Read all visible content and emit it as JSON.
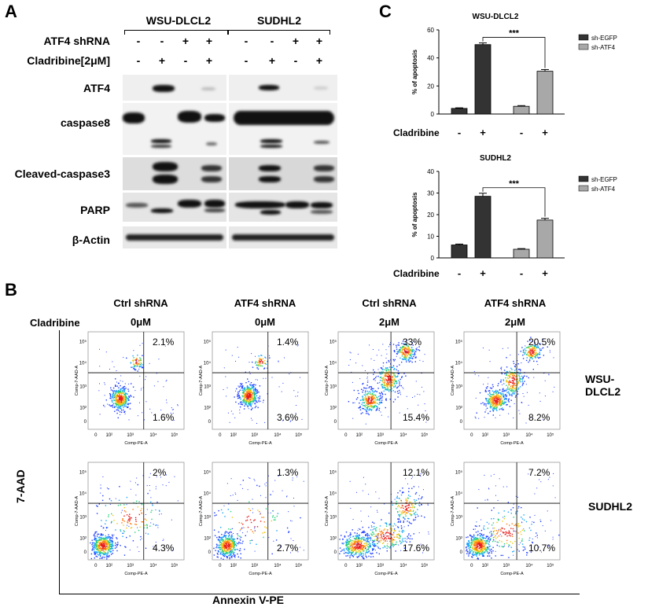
{
  "panels": {
    "a": "A",
    "b": "B",
    "c": "C"
  },
  "westernBlot": {
    "cellLines": [
      "WSU-DLCL2",
      "SUDHL2"
    ],
    "rowLabels": [
      "ATF4 shRNA",
      "Cladribine[2μM]"
    ],
    "atf4Signs": [
      "-",
      "-",
      "+",
      "+",
      "-",
      "-",
      "+",
      "+"
    ],
    "cladribineSigns": [
      "-",
      "+",
      "-",
      "+",
      "-",
      "+",
      "-",
      "+"
    ],
    "blots": [
      "ATF4",
      "caspase8",
      "Cleaved-caspase3",
      "PARP",
      "β-Actin"
    ]
  },
  "panelC": {
    "legend": [
      "sh-EGFP",
      "sh-ATF4"
    ],
    "seriesColors": [
      "#333333",
      "#a8a8a8"
    ],
    "xRowLabel": "Cladribine",
    "xSigns": [
      "-",
      "+",
      "-",
      "+"
    ],
    "significance": "***"
  },
  "chart_data": [
    {
      "type": "bar",
      "title": "WSU-DLCL2",
      "ylabel": "% of apoptosis",
      "ylim": [
        0,
        60
      ],
      "yticks": [
        "0",
        "20",
        "40",
        "60"
      ],
      "categories": [
        "sh-EGFP -",
        "sh-EGFP +",
        "sh-ATF4 -",
        "sh-ATF4 +"
      ],
      "series": [
        {
          "name": "sh-EGFP",
          "values": [
            4,
            49.5,
            null,
            null
          ],
          "errors": [
            0.4,
            1.2,
            null,
            null
          ]
        },
        {
          "name": "sh-ATF4",
          "values": [
            null,
            null,
            5.5,
            30.5
          ],
          "errors": [
            null,
            null,
            0.5,
            1.2
          ]
        }
      ]
    },
    {
      "type": "bar",
      "title": "SUDHL2",
      "ylabel": "% of apoptosis",
      "ylim": [
        0,
        40
      ],
      "yticks": [
        "0",
        "10",
        "20",
        "30",
        "40"
      ],
      "categories": [
        "sh-EGFP -",
        "sh-EGFP +",
        "sh-ATF4 -",
        "sh-ATF4 +"
      ],
      "series": [
        {
          "name": "sh-EGFP",
          "values": [
            6,
            28.5,
            null,
            null
          ],
          "errors": [
            0.4,
            1.4,
            null,
            null
          ]
        },
        {
          "name": "sh-ATF4",
          "values": [
            null,
            null,
            4,
            17.5
          ],
          "errors": [
            null,
            null,
            0.3,
            0.8
          ]
        }
      ]
    }
  ],
  "flow": {
    "columns": [
      {
        "shRNA": "Ctrl shRNA",
        "dose": "0μM"
      },
      {
        "shRNA": "ATF4 shRNA",
        "dose": "0μM"
      },
      {
        "shRNA": "Ctrl shRNA",
        "dose": "2μM"
      },
      {
        "shRNA": "ATF4 shRNA",
        "dose": "2μM"
      }
    ],
    "doseLabel": "Cladribine",
    "yAxisTitle": "7-AAD",
    "xAxisTitle": "Annexin V-PE",
    "plotXLabel": "Comp-PE-A",
    "plotYLabel": "Comp-7-AAD-A",
    "xTicks": [
      "0",
      "10²",
      "10³",
      "10⁴",
      "10⁵"
    ],
    "yTicks": [
      "0",
      "10²",
      "10³",
      "10⁴",
      "10⁵"
    ],
    "rows": [
      {
        "cellLine": "WSU-DLCL2",
        "upperRight": [
          "2.1%",
          "1.4%",
          "33%",
          "20.5%"
        ],
        "lowerRight": [
          "1.6%",
          "3.6%",
          "15.4%",
          "8.2%"
        ]
      },
      {
        "cellLine": "SUDHL2",
        "upperRight": [
          "2%",
          "1.3%",
          "12.1%",
          "7.2%"
        ],
        "lowerRight": [
          "4.3%",
          "2.7%",
          "17.6%",
          "10.7%"
        ]
      }
    ]
  }
}
